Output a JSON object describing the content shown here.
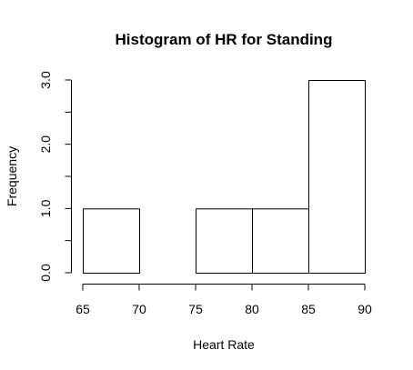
{
  "chart_data": {
    "type": "bar",
    "title": "Histogram of HR for Standing",
    "xlabel": "Heart Rate",
    "ylabel": "Frequency",
    "bins": [
      {
        "start": 65,
        "end": 70,
        "count": 1
      },
      {
        "start": 70,
        "end": 75,
        "count": 0
      },
      {
        "start": 75,
        "end": 80,
        "count": 1
      },
      {
        "start": 80,
        "end": 85,
        "count": 1
      },
      {
        "start": 85,
        "end": 90,
        "count": 3
      }
    ],
    "xlim": [
      65,
      90
    ],
    "ylim": [
      0,
      3
    ],
    "x_ticks": [
      65,
      70,
      75,
      80,
      85,
      90
    ],
    "x_tick_labels": [
      "65",
      "70",
      "75",
      "80",
      "85",
      "90"
    ],
    "y_ticks_major": [
      0,
      1,
      2,
      3
    ],
    "y_tick_labels": [
      "0.0",
      "1.0",
      "2.0",
      "3.0"
    ],
    "y_ticks_minor": [
      0.5,
      1.5,
      2.5
    ],
    "grid": false,
    "colors": {
      "bar_fill": "#ffffff",
      "bar_stroke": "#000000"
    }
  }
}
